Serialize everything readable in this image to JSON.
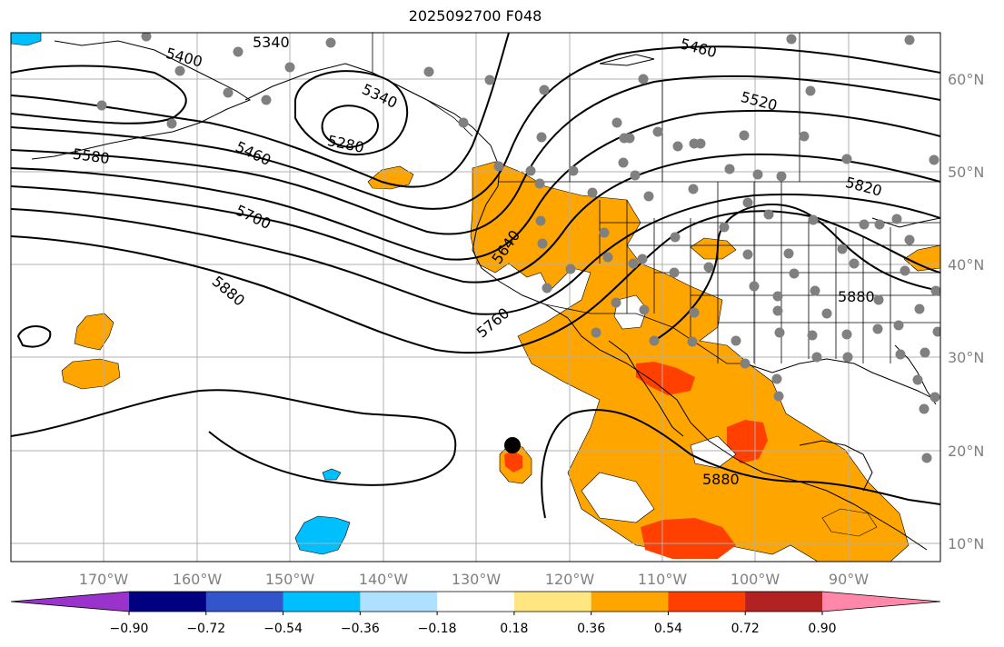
{
  "title": "2025092700 F048",
  "lat_labels": [
    "60°N",
    "50°N",
    "40°N",
    "30°N",
    "20°N",
    "10°N"
  ],
  "lon_labels": [
    "170°W",
    "160°W",
    "150°W",
    "140°W",
    "130°W",
    "120°W",
    "110°W",
    "100°W",
    "90°W"
  ],
  "contour_labels": [
    "5340",
    "5400",
    "5340",
    "5280",
    "5460",
    "5580",
    "5700",
    "5880",
    "5640",
    "5760",
    "5460",
    "5520",
    "5820",
    "5880",
    "5880"
  ],
  "colorbar": {
    "ticks": [
      "−0.90",
      "−0.72",
      "−0.54",
      "−0.36",
      "−0.18",
      "0.18",
      "0.36",
      "0.54",
      "0.72",
      "0.90"
    ],
    "colors": [
      "#9933cc",
      "#000080",
      "#3355cc",
      "#00bfff",
      "#aee0ff",
      "#ffffff",
      "#ffe680",
      "#ffa500",
      "#ff4000",
      "#b22222",
      "#ff88aa"
    ]
  },
  "field_colors": {
    "orange": "#ffa500",
    "red": "#ff4000",
    "blue": "#00bfff",
    "station": "#808080",
    "marker": "#000000"
  }
}
